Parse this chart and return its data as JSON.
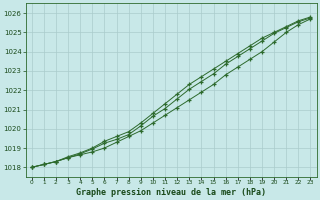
{
  "title": "Graphe pression niveau de la mer (hPa)",
  "bg_color": "#c8e8e8",
  "grid_color": "#aacccc",
  "line_color": "#2d6a2d",
  "x_labels": [
    "0",
    "1",
    "2",
    "3",
    "4",
    "5",
    "6",
    "7",
    "8",
    "9",
    "10",
    "11",
    "12",
    "13",
    "14",
    "15",
    "16",
    "17",
    "18",
    "19",
    "20",
    "21",
    "22",
    "23"
  ],
  "ylim": [
    1017.5,
    1026.5
  ],
  "yticks": [
    1018,
    1019,
    1020,
    1021,
    1022,
    1023,
    1024,
    1025,
    1026
  ],
  "line1": [
    1018.0,
    1018.15,
    1018.3,
    1018.5,
    1018.65,
    1018.8,
    1019.0,
    1019.3,
    1019.6,
    1019.9,
    1020.3,
    1020.7,
    1021.1,
    1021.5,
    1021.9,
    1022.3,
    1022.8,
    1023.2,
    1023.6,
    1024.0,
    1024.5,
    1025.0,
    1025.4,
    1025.7
  ],
  "line2": [
    1018.0,
    1018.15,
    1018.3,
    1018.55,
    1018.75,
    1019.0,
    1019.35,
    1019.6,
    1019.85,
    1020.3,
    1020.8,
    1021.3,
    1021.8,
    1022.3,
    1022.7,
    1023.1,
    1023.5,
    1023.9,
    1024.3,
    1024.7,
    1025.0,
    1025.3,
    1025.6,
    1025.8
  ],
  "line3": [
    1018.0,
    1018.15,
    1018.3,
    1018.5,
    1018.7,
    1018.95,
    1019.25,
    1019.45,
    1019.7,
    1020.15,
    1020.65,
    1021.05,
    1021.55,
    1022.05,
    1022.45,
    1022.85,
    1023.35,
    1023.75,
    1024.15,
    1024.55,
    1024.95,
    1025.25,
    1025.55,
    1025.75
  ],
  "figsize": [
    3.2,
    2.0
  ],
  "dpi": 100
}
